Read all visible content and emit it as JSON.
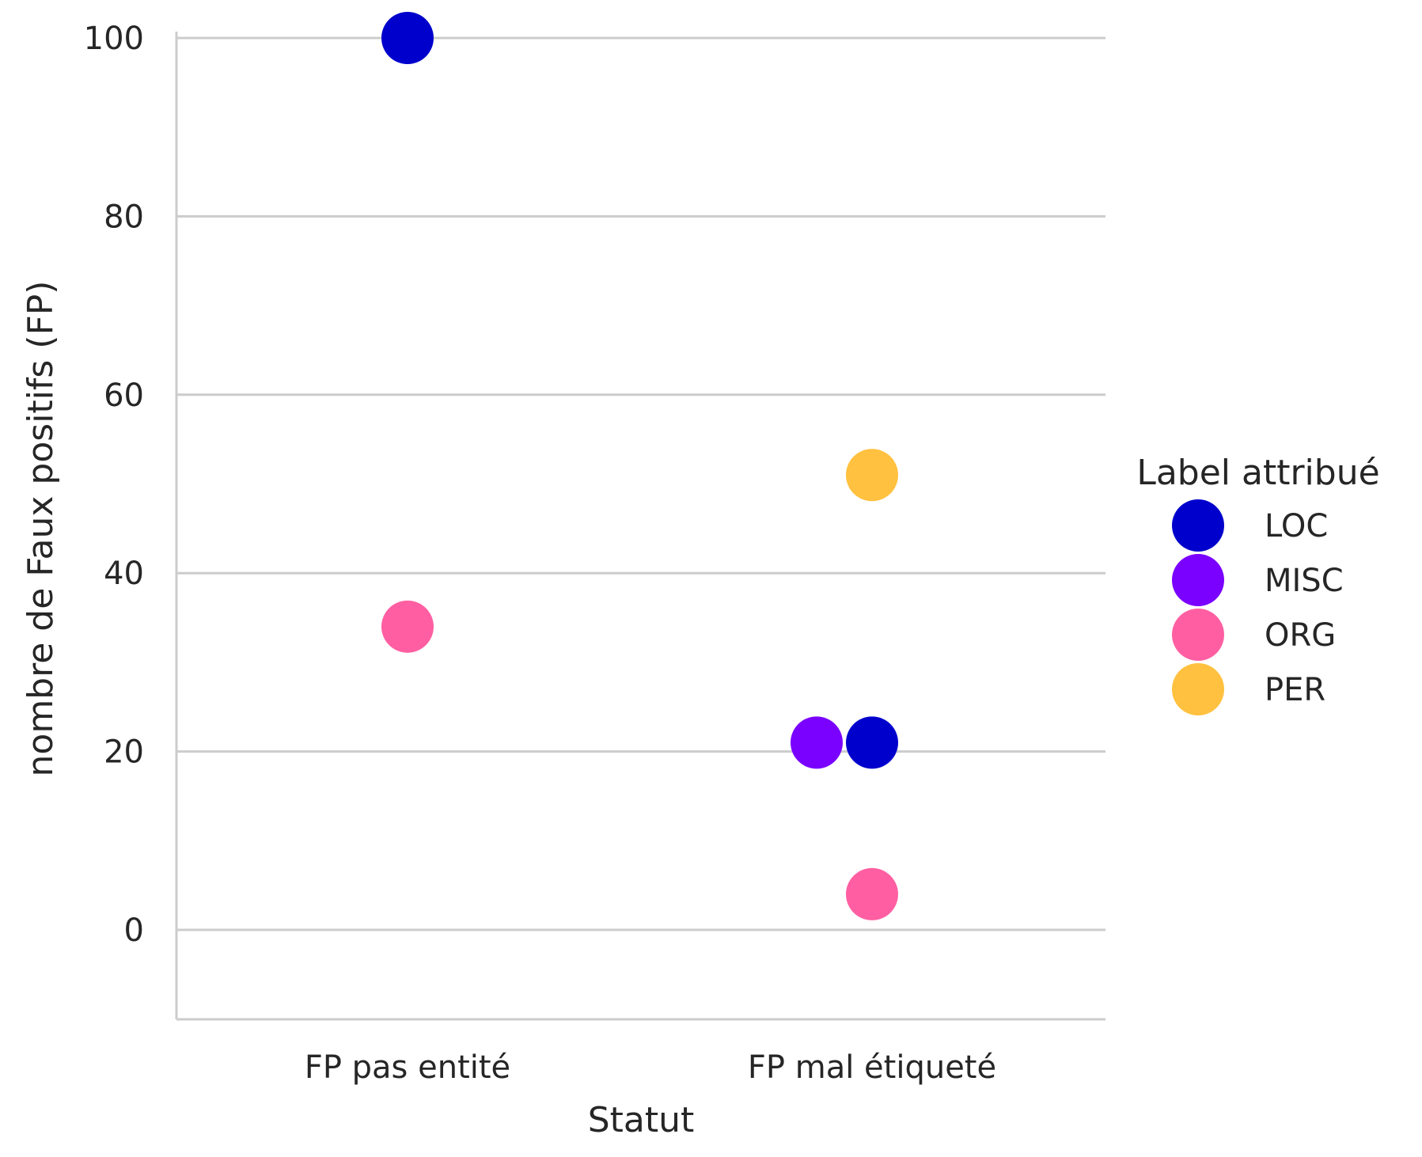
{
  "chart_data": {
    "type": "scatter",
    "title": "",
    "xlabel": "Statut",
    "ylabel": "nombre de Faux positifs (FP)",
    "categories": [
      "FP pas entité",
      "FP mal étiqueté"
    ],
    "ylim": [
      -10,
      100
    ],
    "yticks": [
      0,
      20,
      40,
      60,
      80,
      100
    ],
    "grid": "horizontal",
    "legend": {
      "title": "Label attribué",
      "placement": "right"
    },
    "series": [
      {
        "name": "LOC",
        "color": "#0000cc",
        "points": [
          {
            "category": "FP pas entité",
            "y": 100
          },
          {
            "category": "FP mal étiqueté",
            "y": 21
          }
        ]
      },
      {
        "name": "MISC",
        "color": "#7a00ff",
        "points": [
          {
            "category": "FP mal étiqueté",
            "y": 21
          }
        ]
      },
      {
        "name": "ORG",
        "color": "#ff5fa2",
        "points": [
          {
            "category": "FP pas entité",
            "y": 34
          },
          {
            "category": "FP mal étiqueté",
            "y": 4
          }
        ]
      },
      {
        "name": "PER",
        "color": "#ffc13f",
        "points": [
          {
            "category": "FP mal étiqueté",
            "y": 51
          }
        ]
      }
    ]
  }
}
